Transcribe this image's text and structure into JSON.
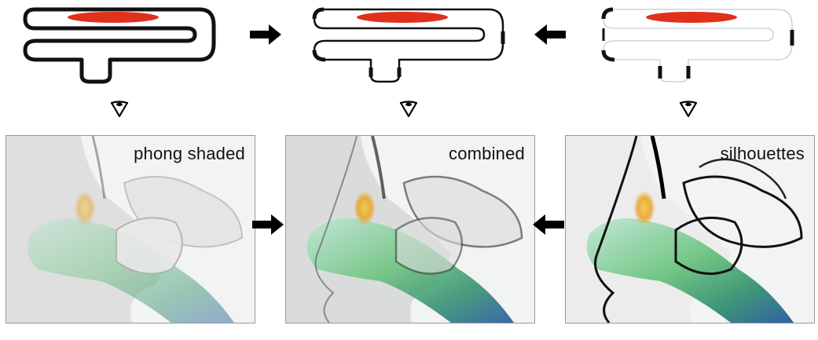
{
  "diagram": {
    "colors": {
      "outline": "#111111",
      "highlight": "#e0311c",
      "panel_bg": "#f2f3f3",
      "arrow": "#000000"
    },
    "columns": [
      {
        "id": "phong",
        "label": "phong shaded",
        "outline_style": "solid"
      },
      {
        "id": "combined",
        "label": "combined",
        "outline_style": "tapered"
      },
      {
        "id": "silhouettes",
        "label": "silhouettes",
        "outline_style": "partial"
      }
    ],
    "arrows": [
      {
        "from": "phong",
        "to": "combined",
        "direction": "right"
      },
      {
        "from": "silhouettes",
        "to": "combined",
        "direction": "left"
      }
    ],
    "icons": [
      "eye-view-icon",
      "right-arrow-icon",
      "left-arrow-icon"
    ]
  }
}
